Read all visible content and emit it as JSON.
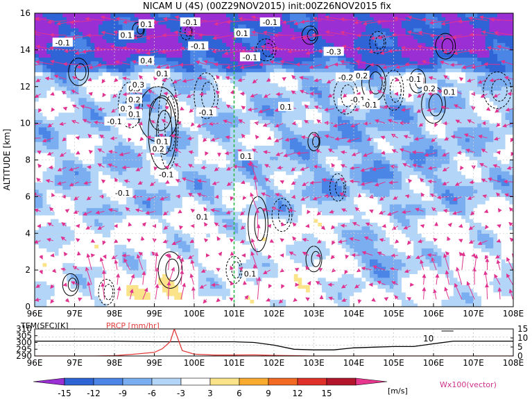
{
  "chart_data": [
    {
      "type": "heatmap",
      "title": "NICAM U (4S) (00Z29NOV2015) init:00Z26NOV2015 fix",
      "xlabel": "",
      "ylabel": "ALTITUDE [km]",
      "x_ticks": [
        "96E",
        "97E",
        "98E",
        "99E",
        "100E",
        "101E",
        "102E",
        "103E",
        "104E",
        "105E",
        "106E",
        "107E",
        "108E"
      ],
      "y_ticks": [
        "0",
        "2",
        "4",
        "6",
        "8",
        "10",
        "12",
        "14",
        "16"
      ],
      "xlim": [
        96,
        108
      ],
      "ylim": [
        0,
        16
      ],
      "marker_longitude": 101,
      "colorbar": {
        "label": "[m/s]",
        "levels": [
          "-15",
          "-12",
          "-9",
          "-6",
          "-3",
          "3",
          "6",
          "9",
          "12",
          "15"
        ],
        "colors": [
          "#9a2fd4",
          "#2f64d6",
          "#4b86e6",
          "#7aaef0",
          "#b3d6f8",
          "#ffffff",
          "#fbe38a",
          "#f8ab2e",
          "#f36a22",
          "#e0302a",
          "#b3152b",
          "#e8368f"
        ]
      },
      "vector_label": "Wx100(vector)",
      "contour_labels": [
        "-0.1",
        "0.1",
        "-0.1",
        "0.1",
        "-0.1",
        "-0.1",
        "0.1",
        "-0.1",
        "0.4",
        "0.1",
        "-0.3",
        "0.3",
        "-0.2",
        "0.2",
        "0.2",
        "-0.1",
        "-0.1",
        "0.2",
        "0.1",
        "0.1",
        "0.1",
        "-0.1",
        "0.1",
        "0.2",
        "0.1",
        "-0.1",
        "-0.1",
        "-0.1",
        "0.3",
        "0.2",
        "0.1",
        "-0.1",
        "0.1"
      ],
      "shading_samples": [
        {
          "lon": 97,
          "alt": 15,
          "u": -15
        },
        {
          "lon": 104,
          "alt": 15,
          "u": -15
        },
        {
          "lon": 98,
          "alt": 12,
          "u": -6
        },
        {
          "lon": 101,
          "alt": 9,
          "u": -3
        },
        {
          "lon": 104,
          "alt": 9,
          "u": -9
        },
        {
          "lon": 98,
          "alt": 3,
          "u": -3
        },
        {
          "lon": 99,
          "alt": 0.5,
          "u": 6
        },
        {
          "lon": 103,
          "alt": 1,
          "u": 0
        },
        {
          "lon": 104.5,
          "alt": 3,
          "u": -9
        }
      ]
    },
    {
      "type": "line",
      "title": "",
      "series": [
        {
          "name": "TEM(SFC)[K]",
          "color": "#000000",
          "x": [
            96,
            97,
            98,
            99,
            99.5,
            100,
            101,
            101.5,
            102,
            102.5,
            103,
            103.5,
            104,
            104.5,
            105,
            105.5,
            106,
            106.5,
            107,
            108
          ],
          "values": [
            301,
            301,
            301,
            300.5,
            300.5,
            300.5,
            300.5,
            300,
            298,
            295,
            294.5,
            294.5,
            296,
            296.5,
            297,
            297,
            299,
            301,
            301,
            301
          ]
        },
        {
          "name": "PRCP [mm/hr]",
          "color": "#e23b3b",
          "x": [
            96,
            97,
            97.5,
            98,
            98.5,
            99,
            99.2,
            99.4,
            99.5,
            99.7,
            100,
            100.5,
            101,
            101.5,
            102,
            102.5,
            103,
            104,
            105,
            106,
            107,
            108
          ],
          "values": [
            0,
            0,
            0,
            0.2,
            1,
            2,
            4,
            8,
            15,
            3,
            1,
            0.5,
            0.5,
            0.6,
            0.3,
            0.2,
            0,
            0,
            0,
            0,
            0,
            0
          ]
        }
      ],
      "left_axis_ticks": [
        "310",
        "305",
        "300",
        "295",
        "290"
      ],
      "right_axis_ticks": [
        "15",
        "10",
        "5",
        "0"
      ],
      "x_ticks": [
        "96E",
        "97E",
        "98E",
        "99E",
        "100E",
        "101E",
        "102E",
        "103E",
        "104E",
        "105E",
        "106E",
        "107E",
        "108E"
      ],
      "annotation": "10",
      "ylim_left": [
        290,
        310
      ],
      "ylim_right": [
        0,
        15
      ]
    }
  ]
}
